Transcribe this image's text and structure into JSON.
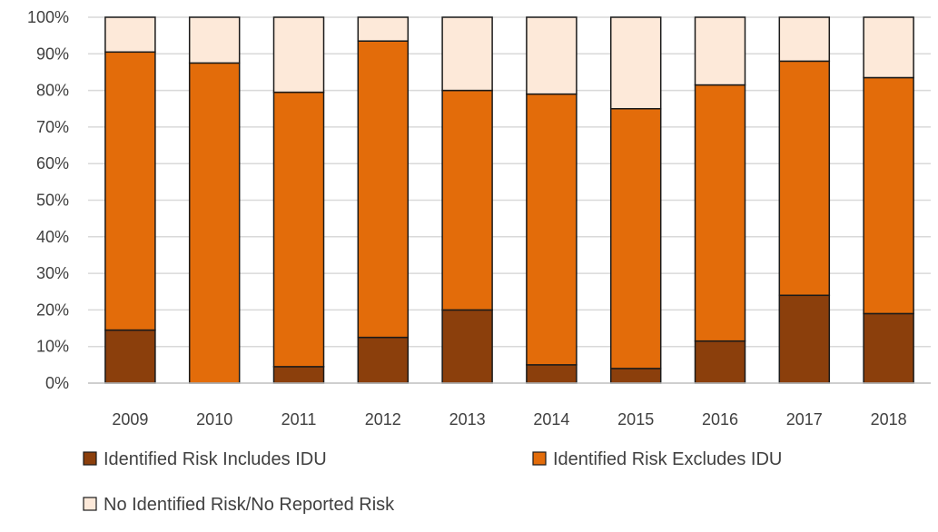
{
  "chart_data": {
    "type": "bar",
    "stacked": true,
    "percent": true,
    "title": "",
    "xlabel": "",
    "ylabel": "",
    "ylim": [
      0,
      100
    ],
    "yticks": [
      0,
      10,
      20,
      30,
      40,
      50,
      60,
      70,
      80,
      90,
      100
    ],
    "ytick_labels": [
      "0%",
      "10%",
      "20%",
      "30%",
      "40%",
      "50%",
      "60%",
      "70%",
      "80%",
      "90%",
      "100%"
    ],
    "grid": true,
    "legend_position": "bottom",
    "categories": [
      "2009",
      "2010",
      "2011",
      "2012",
      "2013",
      "2014",
      "2015",
      "2016",
      "2017",
      "2018"
    ],
    "series": [
      {
        "name": "Identified Risk Includes IDU",
        "color": "#8b3f0c",
        "values": [
          14.5,
          0,
          4.5,
          12.5,
          20,
          5,
          4,
          11.5,
          24,
          19
        ]
      },
      {
        "name": "Identified Risk Excludes IDU",
        "color": "#e36c0a",
        "values": [
          76,
          87.5,
          75,
          81,
          60,
          74,
          71,
          70,
          64,
          64.5
        ]
      },
      {
        "name": "No Identified Risk/No Reported Risk",
        "color": "#fde9d9",
        "values": [
          9.5,
          12.5,
          20.5,
          6.5,
          20,
          21,
          25,
          18.5,
          12,
          16.5
        ]
      }
    ]
  }
}
